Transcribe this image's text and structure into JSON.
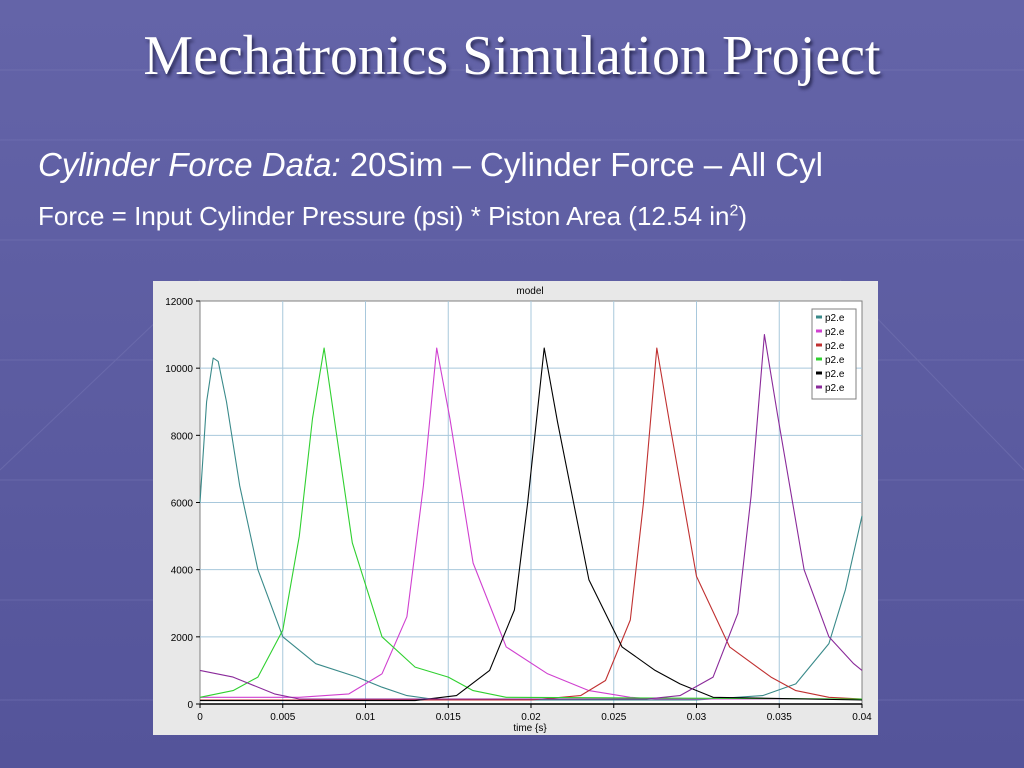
{
  "slide": {
    "title": "Mechatronics Simulation Project",
    "subtitle_label": "Cylinder Force Data:",
    "subtitle_text": "20Sim – Cylinder Force – All Cyl",
    "formula_main": "Force = Input Cylinder Pressure (psi) * Piston Area (12.54 in",
    "formula_sup": "2",
    "formula_end": ")"
  },
  "colors": {
    "background": "#5a5a9c",
    "plot_bg": "#ffffff",
    "chart_panel": "#e8e8e8",
    "grid": "#a8c8dc"
  },
  "chart_data": {
    "type": "line",
    "title": "model",
    "xlabel": "time {s}",
    "ylabel": "",
    "xlim": [
      0,
      0.04
    ],
    "ylim": [
      0,
      12000
    ],
    "xticks": [
      "0",
      "0.005",
      "0.01",
      "0.015",
      "0.02",
      "0.025",
      "0.03",
      "0.035",
      "0.04"
    ],
    "yticks": [
      "0",
      "2000",
      "4000",
      "6000",
      "8000",
      "10000",
      "12000"
    ],
    "grid": true,
    "legend_position": "top-right",
    "series": [
      {
        "name": "p2.e",
        "color": "#3a8a8a",
        "x": [
          0,
          0.0004,
          0.0008,
          0.0011,
          0.0016,
          0.0024,
          0.0035,
          0.005,
          0.007,
          0.0095,
          0.011,
          0.0125,
          0.014,
          0.016,
          0.03,
          0.034,
          0.036,
          0.038,
          0.039,
          0.04
        ],
        "y": [
          6000,
          9000,
          10300,
          10200,
          9000,
          6500,
          4000,
          2000,
          1200,
          800,
          500,
          250,
          150,
          120,
          120,
          250,
          600,
          1800,
          3400,
          5600
        ]
      },
      {
        "name": "p2.e",
        "color": "#d040d0",
        "x": [
          0,
          0.006,
          0.009,
          0.011,
          0.0125,
          0.0135,
          0.0143,
          0.0151,
          0.0165,
          0.0185,
          0.021,
          0.0235,
          0.026,
          0.0275,
          0.04
        ],
        "y": [
          200,
          200,
          300,
          900,
          2600,
          6500,
          10600,
          8500,
          4200,
          1700,
          900,
          400,
          200,
          150,
          150
        ]
      },
      {
        "name": "p2.e",
        "color": "#c03030",
        "x": [
          0,
          0.02,
          0.023,
          0.0245,
          0.026,
          0.0268,
          0.0276,
          0.0284,
          0.03,
          0.032,
          0.0345,
          0.036,
          0.038,
          0.04
        ],
        "y": [
          120,
          120,
          250,
          700,
          2500,
          6000,
          10600,
          8300,
          3800,
          1700,
          800,
          400,
          200,
          150
        ]
      },
      {
        "name": "p2.e",
        "color": "#30d030",
        "x": [
          0,
          0.002,
          0.0035,
          0.005,
          0.006,
          0.0068,
          0.0075,
          0.0082,
          0.0092,
          0.011,
          0.013,
          0.015,
          0.0165,
          0.0185,
          0.04
        ],
        "y": [
          200,
          400,
          800,
          2200,
          5000,
          8500,
          10600,
          8200,
          4800,
          2000,
          1100,
          800,
          400,
          200,
          150
        ]
      },
      {
        "name": "p2.e",
        "color": "#000000",
        "x": [
          0,
          0.013,
          0.0155,
          0.0175,
          0.019,
          0.0198,
          0.0208,
          0.0216,
          0.0235,
          0.0255,
          0.0275,
          0.029,
          0.031,
          0.04
        ],
        "y": [
          100,
          100,
          250,
          1000,
          2800,
          6000,
          10600,
          8400,
          3700,
          1700,
          1000,
          600,
          200,
          120
        ]
      },
      {
        "name": "p2.e",
        "color": "#8a2a9a",
        "x": [
          0,
          0.002,
          0.0045,
          0.006,
          0.027,
          0.029,
          0.031,
          0.0325,
          0.0333,
          0.0341,
          0.0349,
          0.0365,
          0.038,
          0.0395,
          0.04
        ],
        "y": [
          1000,
          800,
          300,
          150,
          150,
          250,
          800,
          2700,
          6200,
          11000,
          8600,
          4000,
          2000,
          1200,
          1000
        ]
      }
    ]
  }
}
